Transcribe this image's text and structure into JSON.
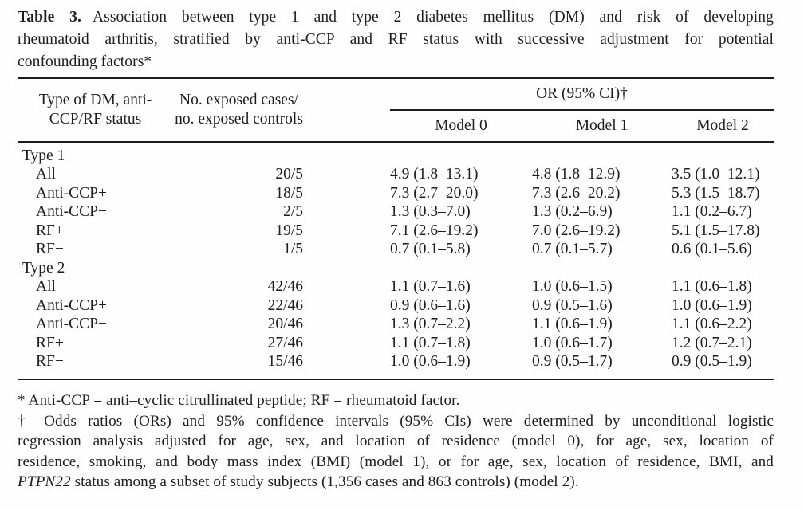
{
  "page": {
    "background": "#fefefe",
    "text_color": "#1e1e1e",
    "rule_color": "#1c1c1c"
  },
  "title": {
    "label": "Table 3.",
    "line1": "Association between type 1 and type 2 diabetes mellitus (DM) and risk of developing",
    "line2": "rheumatoid arthritis, stratified by anti-CCP and RF status with successive adjustment for potential",
    "line3": "confounding factors*"
  },
  "table": {
    "col1_header": {
      "line1": "Type of DM, anti-",
      "line2": "CCP/RF status"
    },
    "col2_header": {
      "line1": "No. exposed cases/",
      "line2": "no. exposed controls"
    },
    "or_header": "OR (95% CI)†",
    "model_headers": [
      "Model 0",
      "Model 1",
      "Model 2"
    ],
    "rows": [
      {
        "label": "Type 1",
        "group": true
      },
      {
        "label": "All",
        "exposed": "20/5",
        "model0": "4.9 (1.8–13.1)",
        "model1": "4.8 (1.8–12.9)",
        "model2": "3.5 (1.0–12.1)"
      },
      {
        "label": "Anti-CCP+",
        "exposed": "18/5",
        "model0": "7.3 (2.7–20.0)",
        "model1": "7.3 (2.6–20.2)",
        "model2": "5.3 (1.5–18.7)"
      },
      {
        "label": "Anti-CCP−",
        "exposed": "2/5",
        "model0": "1.3 (0.3–7.0)",
        "model1": "1.3 (0.2–6.9)",
        "model2": "1.1 (0.2–6.7)"
      },
      {
        "label": "RF+",
        "exposed": "19/5",
        "model0": "7.1 (2.6–19.2)",
        "model1": "7.0 (2.6–19.2)",
        "model2": "5.1 (1.5–17.8)"
      },
      {
        "label": "RF−",
        "exposed": "1/5",
        "model0": "0.7 (0.1–5.8)",
        "model1": "0.7 (0.1–5.7)",
        "model2": "0.6 (0.1–5.6)"
      },
      {
        "label": "Type 2",
        "group": true
      },
      {
        "label": "All",
        "exposed": "42/46",
        "model0": "1.1 (0.7–1.6)",
        "model1": "1.0 (0.6–1.5)",
        "model2": "1.1 (0.6–1.8)"
      },
      {
        "label": "Anti-CCP+",
        "exposed": "22/46",
        "model0": "0.9 (0.6–1.6)",
        "model1": "0.9 (0.5–1.6)",
        "model2": "1.0 (0.6–1.9)"
      },
      {
        "label": "Anti-CCP−",
        "exposed": "20/46",
        "model0": "1.3 (0.7–2.2)",
        "model1": "1.1 (0.6–1.9)",
        "model2": "1.1 (0.6–2.2)"
      },
      {
        "label": "RF+",
        "exposed": "27/46",
        "model0": "1.1 (0.7–1.8)",
        "model1": "1.0 (0.6–1.7)",
        "model2": "1.2 (0.7–2.1)"
      },
      {
        "label": "RF−",
        "exposed": "15/46",
        "model0": "1.0 (0.6–1.9)",
        "model1": "0.9 (0.5–1.7)",
        "model2": "0.9 (0.5–1.9)"
      }
    ]
  },
  "footnotes": {
    "asterisk": "* Anti-CCP = anti–cyclic citrullinated peptide; RF = rheumatoid factor.",
    "dagger_line1": "† Odds ratios (ORs) and 95% confidence intervals (95% CIs) were determined by unconditional logistic",
    "dagger_line2": "regression analysis adjusted for age, sex, and location of residence (model 0), for age, sex, location of",
    "dagger_line3": "residence, smoking, and body mass index (BMI) (model 1), or for age, sex, location of residence, BMI, and",
    "dagger_line4_italic": "PTPN22",
    "dagger_line4_rest": " status among a subset of study subjects (1,356 cases and 863 controls) (model 2)."
  }
}
